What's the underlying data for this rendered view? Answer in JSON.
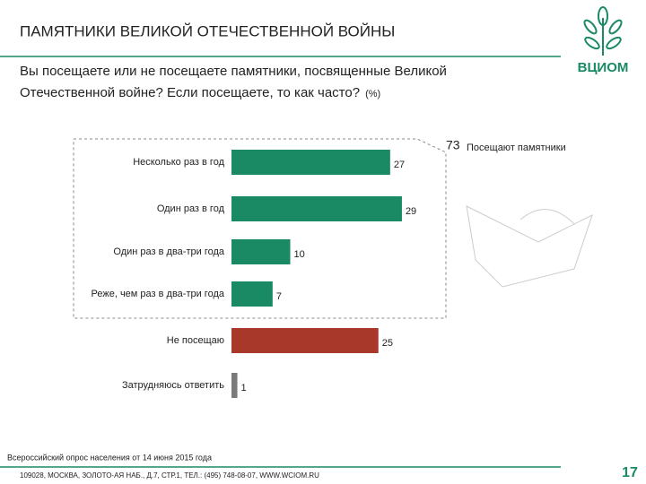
{
  "header": {
    "title": "ПАМЯТНИКИ ВЕЛИКОЙ ОТЕЧЕСТВЕННОЙ ВОЙНЫ",
    "question_lines": [
      "Вы посещаете или не посещаете памятники, посвященные Великой",
      "Отечественной войне? Если посещаете, то как часто?"
    ],
    "unit": "(%)",
    "logo": "ВЦИОМ"
  },
  "chart_data": {
    "type": "bar",
    "orientation": "horizontal",
    "categories": [
      "Несколько раз в год",
      "Один раз в год",
      "Один раз в два-три года",
      "Реже, чем раз в два-три года",
      "Не посещаю",
      "Затрудняюсь ответить"
    ],
    "values": [
      27,
      29,
      10,
      7,
      25,
      1
    ],
    "colors": [
      "#1a8a64",
      "#1a8a64",
      "#1a8a64",
      "#1a8a64",
      "#a8392a",
      "#7a7a7a"
    ],
    "annotation_value": 73,
    "annotation_label": "Посещают памятники"
  },
  "footer": {
    "source": "Всероссийский опрос населения от 14 июня 2015 года",
    "address": "109028, МОСКВА, ЗОЛОТО-АЯ НАБ., Д.7, СТР.1, ТЕЛ.: (495) 748-08-07, WWW.WCIOM.RU",
    "page": "17"
  }
}
